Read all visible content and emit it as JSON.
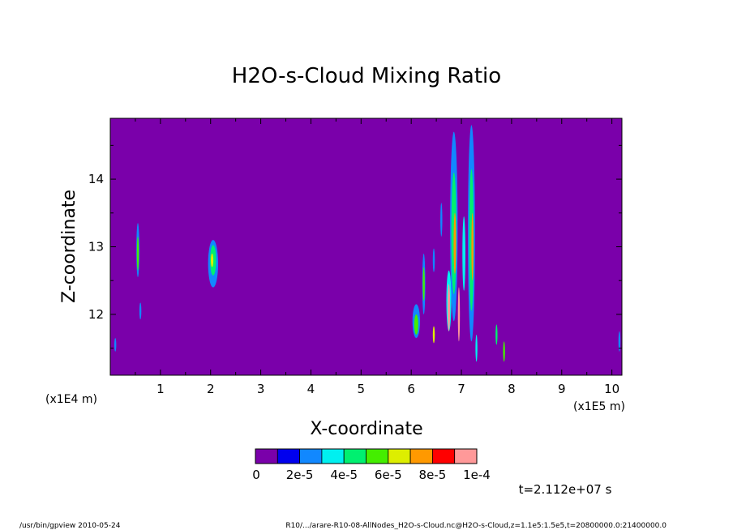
{
  "chart_data": {
    "type": "heatmap",
    "title": "H2O-s-Cloud Mixing Ratio",
    "xlabel": "X-coordinate",
    "ylabel": "Z-coordinate",
    "x_scale_note": "(x1E5 m)",
    "y_scale_note": "(x1E4 m)",
    "xlim": [
      0.0,
      10.2
    ],
    "ylim": [
      11.1,
      14.9
    ],
    "x_ticks": [
      1,
      2,
      3,
      4,
      5,
      6,
      7,
      8,
      9,
      10
    ],
    "y_ticks": [
      12,
      13,
      14
    ],
    "x_tick_labels": [
      "1",
      "2",
      "3",
      "4",
      "5",
      "6",
      "7",
      "8",
      "9",
      "10"
    ],
    "y_tick_labels": [
      "12",
      "13",
      "14"
    ],
    "background_color": "#7a00aa",
    "colorbar": {
      "levels": [
        0,
        2e-05,
        4e-05,
        6e-05,
        8e-05,
        0.0001
      ],
      "labels": [
        "0",
        "2e-5",
        "4e-5",
        "6e-5",
        "8e-5",
        "1e-4"
      ],
      "colors": [
        "#7a00aa",
        "#0000ee",
        "#1188ff",
        "#00f0f0",
        "#00f070",
        "#44ee00",
        "#ddee00",
        "#ff9900",
        "#ff0000",
        "#ff9999"
      ]
    },
    "cloud_features": [
      {
        "x": 0.55,
        "z": 12.95,
        "width": 0.06,
        "height": 0.8,
        "color_index": 2
      },
      {
        "x": 0.55,
        "z": 12.9,
        "width": 0.03,
        "height": 0.5,
        "color_index": 5
      },
      {
        "x": 0.6,
        "z": 12.05,
        "width": 0.03,
        "height": 0.25,
        "color_index": 2
      },
      {
        "x": 0.1,
        "z": 11.55,
        "width": 0.03,
        "height": 0.2,
        "color_index": 2
      },
      {
        "x": 2.05,
        "z": 12.75,
        "width": 0.2,
        "height": 0.7,
        "color_index": 2
      },
      {
        "x": 2.05,
        "z": 12.8,
        "width": 0.12,
        "height": 0.45,
        "color_index": 4
      },
      {
        "x": 2.03,
        "z": 12.8,
        "width": 0.05,
        "height": 0.2,
        "color_index": 6
      },
      {
        "x": 6.1,
        "z": 11.9,
        "width": 0.15,
        "height": 0.5,
        "color_index": 2
      },
      {
        "x": 6.1,
        "z": 11.85,
        "width": 0.08,
        "height": 0.3,
        "color_index": 5
      },
      {
        "x": 6.25,
        "z": 12.45,
        "width": 0.06,
        "height": 0.9,
        "color_index": 2
      },
      {
        "x": 6.25,
        "z": 12.45,
        "width": 0.03,
        "height": 0.5,
        "color_index": 5
      },
      {
        "x": 6.45,
        "z": 12.8,
        "width": 0.04,
        "height": 0.35,
        "color_index": 2
      },
      {
        "x": 6.45,
        "z": 11.7,
        "width": 0.04,
        "height": 0.25,
        "color_index": 6
      },
      {
        "x": 6.6,
        "z": 13.4,
        "width": 0.03,
        "height": 0.5,
        "color_index": 2
      },
      {
        "x": 6.75,
        "z": 12.2,
        "width": 0.1,
        "height": 0.9,
        "color_index": 3
      },
      {
        "x": 6.75,
        "z": 12.1,
        "width": 0.05,
        "height": 0.7,
        "color_index": 9
      },
      {
        "x": 6.85,
        "z": 13.3,
        "width": 0.15,
        "height": 2.8,
        "color_index": 2
      },
      {
        "x": 6.85,
        "z": 13.2,
        "width": 0.1,
        "height": 1.8,
        "color_index": 4
      },
      {
        "x": 6.87,
        "z": 13.05,
        "width": 0.05,
        "height": 0.9,
        "color_index": 7
      },
      {
        "x": 6.95,
        "z": 12.0,
        "width": 0.04,
        "height": 0.8,
        "color_index": 9
      },
      {
        "x": 7.05,
        "z": 12.9,
        "width": 0.06,
        "height": 1.1,
        "color_index": 3
      },
      {
        "x": 7.2,
        "z": 13.2,
        "width": 0.14,
        "height": 3.2,
        "color_index": 2
      },
      {
        "x": 7.2,
        "z": 13.1,
        "width": 0.09,
        "height": 2.1,
        "color_index": 4
      },
      {
        "x": 7.22,
        "z": 13.0,
        "width": 0.04,
        "height": 1.0,
        "color_index": 7
      },
      {
        "x": 7.3,
        "z": 11.5,
        "width": 0.03,
        "height": 0.4,
        "color_index": 3
      },
      {
        "x": 7.7,
        "z": 11.7,
        "width": 0.03,
        "height": 0.3,
        "color_index": 4
      },
      {
        "x": 7.85,
        "z": 11.45,
        "width": 0.03,
        "height": 0.3,
        "color_index": 5
      },
      {
        "x": 10.15,
        "z": 11.6,
        "width": 0.03,
        "height": 0.3,
        "color_index": 2
      }
    ]
  },
  "time_label": "t=2.112e+07 s",
  "footer_left": "/usr/bin/gpview  2010-05-24",
  "footer_right": "R10/.../arare-R10-08-AllNodes_H2O-s-Cloud.nc@H2O-s-Cloud,z=1.1e5:1.5e5,t=20800000.0:21400000.0"
}
